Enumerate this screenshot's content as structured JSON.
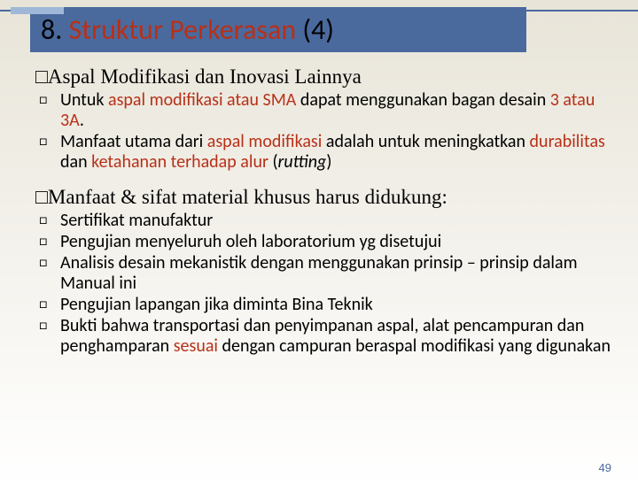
{
  "title": {
    "number": "8.",
    "main": "Struktur Perkerasan",
    "suffix": "(4)"
  },
  "section1": {
    "heading_pre": "□",
    "heading": "Aspal Modifikasi dan Inovasi Lainnya",
    "items": [
      {
        "pre": "Untuk ",
        "red1": "aspal modifikasi atau SMA",
        "mid": " dapat menggunakan bagan desain ",
        "red2": "3 atau 3A",
        "post": "."
      },
      {
        "pre": "Manfaat utama dari ",
        "red1": "aspal modifikasi",
        "mid": " adalah untuk meningkatkan ",
        "red2": "durabilitas",
        "mid2": " dan ",
        "red3": "ketahanan terhadap alur",
        "post": " (",
        "italic": "rutting",
        "post2": ")"
      }
    ]
  },
  "section2": {
    "heading_pre": "□",
    "heading": "Manfaat & sifat material khusus harus didukung:",
    "items": [
      {
        "text": "Sertifikat manufaktur"
      },
      {
        "text": "Pengujian menyeluruh oleh laboratorium yg disetujui"
      },
      {
        "text": "Analisis desain mekanistik dengan menggunakan prinsip – prinsip dalam Manual ini"
      },
      {
        "text": "Pengujian lapangan jika diminta Bina Teknik"
      },
      {
        "pre": "Bukti bahwa transportasi dan penyimpanan aspal, alat pencampuran dan penghamparan ",
        "red": "sesuai",
        "post": " dengan campuran beraspal modifikasi yang digunakan"
      }
    ]
  },
  "pageNumber": "49",
  "colors": {
    "titleBg": "#4a6a9e",
    "red": "#b83018"
  }
}
